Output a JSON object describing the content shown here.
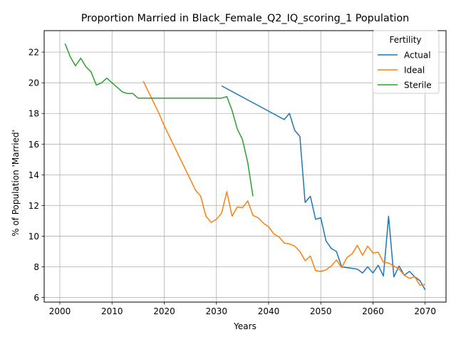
{
  "chart_data": {
    "type": "line",
    "title": "Proportion Married in Black_Female_Q2_IQ_scoring_1 Population",
    "xlabel": "Years",
    "ylabel": "% of Population 'Married'",
    "xlim": [
      1997,
      2074
    ],
    "ylim": [
      5.7,
      23.4
    ],
    "xticks": [
      2000,
      2010,
      2020,
      2030,
      2040,
      2050,
      2060,
      2070
    ],
    "yticks": [
      6,
      8,
      10,
      12,
      14,
      16,
      18,
      20,
      22
    ],
    "grid": true,
    "legend": {
      "title": "Fertility",
      "placement": "top-right"
    },
    "series": [
      {
        "name": "Actual",
        "color": "#1f77b4",
        "x": [
          2031,
          2043,
          2044,
          2045,
          2046,
          2047,
          2048,
          2049,
          2050,
          2051,
          2052,
          2053,
          2054,
          2055,
          2056,
          2057,
          2058,
          2059,
          2060,
          2061,
          2062,
          2063,
          2064,
          2065,
          2066,
          2067,
          2068,
          2069,
          2070
        ],
        "y": [
          19.8,
          17.6,
          18.0,
          16.9,
          16.5,
          12.2,
          12.6,
          11.1,
          11.2,
          9.7,
          9.2,
          9.0,
          8.0,
          7.95,
          7.9,
          7.85,
          7.6,
          8.0,
          7.6,
          8.1,
          7.4,
          11.3,
          7.35,
          8.05,
          7.45,
          7.7,
          7.35,
          7.1,
          6.5
        ]
      },
      {
        "name": "Ideal",
        "color": "#ff7f0e",
        "x": [
          2016,
          2017,
          2018,
          2019,
          2020,
          2021,
          2022,
          2023,
          2024,
          2025,
          2026,
          2027,
          2028,
          2029,
          2030,
          2031,
          2032,
          2033,
          2034,
          2035,
          2036,
          2037,
          2038,
          2039,
          2040,
          2041,
          2042,
          2043,
          2044,
          2045,
          2046,
          2047,
          2048,
          2049,
          2050,
          2051,
          2052,
          2053,
          2054,
          2055,
          2056,
          2057,
          2058,
          2059,
          2060,
          2061,
          2062,
          2063,
          2064,
          2065,
          2066,
          2067,
          2068,
          2069,
          2070
        ],
        "y": [
          20.1,
          19.4,
          18.7,
          18.0,
          17.2,
          16.5,
          15.8,
          15.1,
          14.4,
          13.7,
          13.0,
          12.6,
          11.3,
          10.9,
          11.1,
          11.5,
          12.9,
          11.3,
          11.9,
          11.85,
          12.3,
          11.35,
          11.2,
          10.85,
          10.6,
          10.15,
          9.95,
          9.55,
          9.5,
          9.35,
          9.0,
          8.4,
          8.7,
          7.75,
          7.7,
          7.8,
          8.05,
          8.45,
          7.95,
          8.6,
          8.85,
          9.4,
          8.75,
          9.35,
          8.9,
          8.95,
          8.3,
          8.25,
          8.05,
          7.85,
          7.45,
          7.25,
          7.35,
          6.8,
          6.85
        ]
      },
      {
        "name": "Sterile",
        "color": "#2ca02c",
        "x": [
          2001,
          2002,
          2003,
          2004,
          2005,
          2006,
          2007,
          2008,
          2009,
          2010,
          2011,
          2012,
          2013,
          2014,
          2015,
          2016,
          2017,
          2018,
          2019,
          2020,
          2021,
          2022,
          2023,
          2024,
          2025,
          2026,
          2027,
          2028,
          2029,
          2030,
          2031,
          2032,
          2033,
          2034,
          2035,
          2036,
          2037
        ],
        "y": [
          22.55,
          21.7,
          21.1,
          21.6,
          21.05,
          20.7,
          19.85,
          20.0,
          20.3,
          20.0,
          19.7,
          19.4,
          19.3,
          19.3,
          19.0,
          19.0,
          19.0,
          19.0,
          19.0,
          19.0,
          19.0,
          19.0,
          19.0,
          19.0,
          19.0,
          19.0,
          19.0,
          19.0,
          19.0,
          19.0,
          19.0,
          19.1,
          18.2,
          17.0,
          16.3,
          14.8,
          12.6
        ]
      }
    ]
  }
}
